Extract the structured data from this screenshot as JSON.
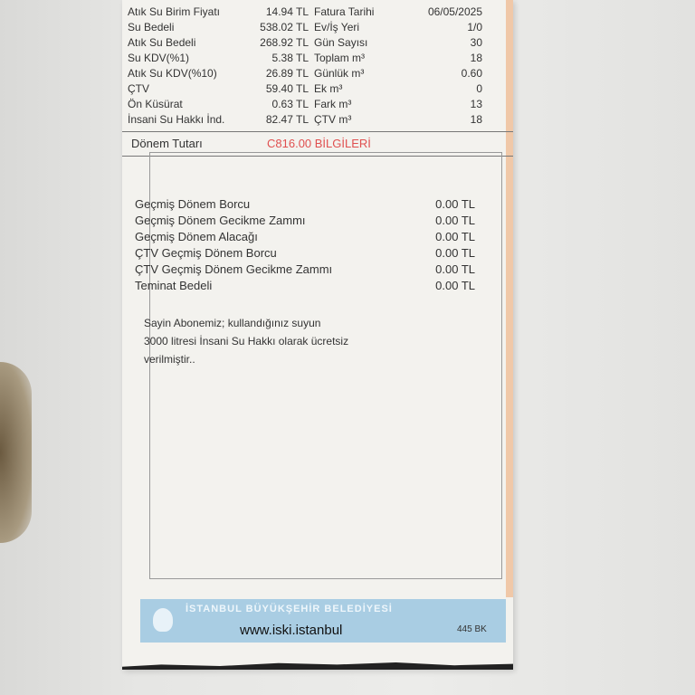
{
  "top_rows": [
    {
      "label": "Atık Su Birim Fiyatı",
      "value": "14.94 TL",
      "label2": "Fatura Tarihi",
      "value2": "06/05/2025"
    },
    {
      "label": "Su Bedeli",
      "value": "538.02 TL",
      "label2": "Ev/İş Yeri",
      "value2": "1/0"
    },
    {
      "label": "Atık Su Bedeli",
      "value": "268.92 TL",
      "label2": "Gün Sayısı",
      "value2": "30"
    },
    {
      "label": "Su KDV(%1)",
      "value": "5.38 TL",
      "label2": "Toplam m³",
      "value2": "18"
    },
    {
      "label": "Atık Su KDV(%10)",
      "value": "26.89 TL",
      "label2": "Günlük m³",
      "value2": "0.60"
    },
    {
      "label": "ÇTV",
      "value": "59.40 TL",
      "label2": "Ek m³",
      "value2": "0"
    },
    {
      "label": "Ön Küsürat",
      "value": "0.63 TL",
      "label2": "Fark m³",
      "value2": "13"
    },
    {
      "label": "İnsani Su Hakkı İnd.",
      "value": "82.47 TL",
      "label2": "ÇTV m³",
      "value2": "18"
    }
  ],
  "total": {
    "label": "Dönem Tutarı",
    "value": "C816.00 BİLGİLERİ"
  },
  "debts": [
    {
      "label": "Geçmiş Dönem Borcu",
      "value": "0.00 TL"
    },
    {
      "label": "Geçmiş Dönem Gecikme Zammı",
      "value": "0.00 TL"
    },
    {
      "label": "Geçmiş Dönem Alacağı",
      "value": "0.00 TL"
    },
    {
      "label": "ÇTV Geçmiş Dönem Borcu",
      "value": "0.00 TL"
    },
    {
      "label": "ÇTV Geçmiş Dönem Gecikme Zammı",
      "value": "0.00 TL"
    },
    {
      "label": "Teminat Bedeli",
      "value": "0.00 TL"
    }
  ],
  "message": [
    "Sayin Abonemiz;    kullandığınız suyun",
    "3000 litresi İnsani Su Hakkı olarak ücretsiz",
    "verilmiştir.."
  ],
  "footer": {
    "banner": "İSTANBUL BÜYÜKŞEHİR BELEDİYESİ",
    "url": "www.iski.istanbul",
    "code": "445 BK"
  }
}
